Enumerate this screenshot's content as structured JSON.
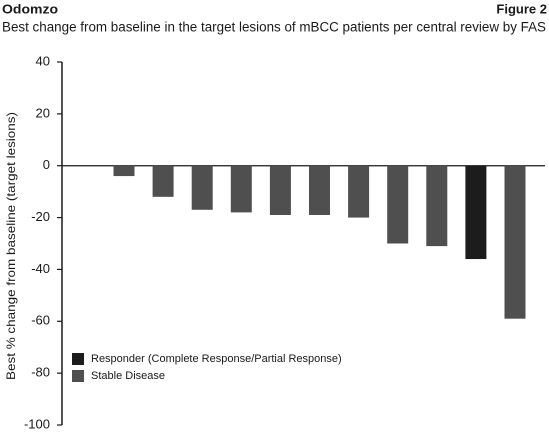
{
  "chart_data": {
    "type": "bar",
    "header_left": "Odomzo",
    "header_right": "Figure 2",
    "title": "Best change from baseline in the target lesions of mBCC patients per central review by FAS",
    "y_label": "Best % change from baseline (target lesions)",
    "categories": [
      null,
      null,
      null,
      null,
      null,
      null,
      null,
      null,
      null,
      null,
      null
    ],
    "series": [
      {
        "name": "Responder (Complete Response/Partial Response)",
        "color": "#1c1c1c",
        "values": [
          null,
          null,
          null,
          null,
          null,
          null,
          null,
          null,
          null,
          -36,
          null
        ]
      },
      {
        "name": "Stable Disease",
        "color": "#4f4f4f",
        "values": [
          -4,
          -12,
          -17,
          -18,
          -19,
          -19,
          -20,
          -30,
          -31,
          null,
          -59
        ]
      }
    ],
    "ylim": [
      -100,
      40
    ],
    "yticks": [
      -100,
      -80,
      -60,
      -40,
      -20,
      0,
      20,
      40
    ],
    "grid": false
  }
}
